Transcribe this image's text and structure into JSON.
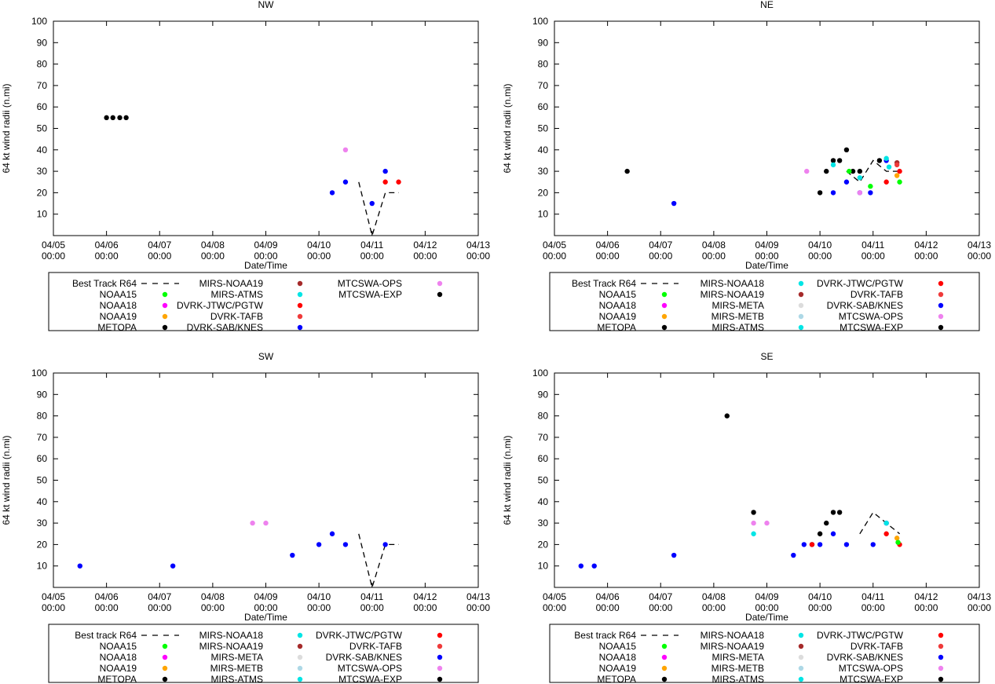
{
  "chart_data": [
    {
      "type": "scatter",
      "title": "NW",
      "xlabel": "Date/Time",
      "ylabel": "64 kt wind radii (n.mi)",
      "xlim": [
        0,
        8
      ],
      "ylim": [
        0,
        100
      ],
      "xticks": [
        {
          "line1": "04/05",
          "line2": "00:00"
        },
        {
          "line1": "04/06",
          "line2": "00:00"
        },
        {
          "line1": "04/07",
          "line2": "00:00"
        },
        {
          "line1": "04/08",
          "line2": "00:00"
        },
        {
          "line1": "04/09",
          "line2": "00:00"
        },
        {
          "line1": "04/10",
          "line2": "00:00"
        },
        {
          "line1": "04/11",
          "line2": "00:00"
        },
        {
          "line1": "04/12",
          "line2": "00:00"
        },
        {
          "line1": "04/13",
          "line2": "00:00"
        }
      ],
      "yticks": [
        "10",
        "20",
        "30",
        "40",
        "50",
        "60",
        "70",
        "80",
        "90",
        "100"
      ],
      "best_track": {
        "x": [
          5.75,
          6.0,
          6.25,
          6.5
        ],
        "y": [
          25,
          0,
          20,
          20
        ]
      },
      "series": [
        {
          "name": "METOPA",
          "color": "#000000",
          "x": [
            1.0,
            1.12,
            1.25,
            1.37
          ],
          "y": [
            55,
            55,
            55,
            55
          ]
        },
        {
          "name": "MTCSWA-OPS",
          "color": "#ee82ee",
          "x": [
            5.5
          ],
          "y": [
            40
          ]
        },
        {
          "name": "DVRK-SAB/KNES",
          "color": "#0000ff",
          "x": [
            5.25,
            5.5,
            6.0,
            6.25
          ],
          "y": [
            20,
            25,
            15,
            30
          ]
        },
        {
          "name": "DVRK-JTWC/PGTW",
          "color": "#ff0000",
          "x": [
            6.25,
            6.5
          ],
          "y": [
            25,
            25
          ]
        }
      ],
      "legend": {
        "columns": [
          [
            {
              "label": "Best Track R64",
              "kind": "line"
            },
            {
              "label": "NOAA15",
              "color": "#00ff00"
            },
            {
              "label": "NOAA18",
              "color": "#ff00ff"
            },
            {
              "label": "NOAA19",
              "color": "#ffa500"
            },
            {
              "label": "METOPA",
              "color": "#000000"
            }
          ],
          [
            {
              "label": "MIRS-NOAA19",
              "color": "#a52a2a"
            },
            {
              "label": "MIRS-ATMS",
              "color": "#00e5e5"
            },
            {
              "label": "DVRK-JTWC/PGTW",
              "color": "#ff0000"
            },
            {
              "label": "DVRK-TAFB",
              "color": "#ef3a3a"
            },
            {
              "label": "DVRK-SAB/KNES",
              "color": "#0000ff"
            }
          ],
          [
            {
              "label": "MTCSWA-OPS",
              "color": "#ee82ee"
            },
            {
              "label": "MTCSWA-EXP",
              "color": "#000000"
            }
          ]
        ]
      }
    },
    {
      "type": "scatter",
      "title": "NE",
      "xlabel": "Date/Time",
      "ylabel": "64 kt wind radii (n.mi)",
      "xlim": [
        0,
        8
      ],
      "ylim": [
        0,
        100
      ],
      "xticks": [
        {
          "line1": "04/05",
          "line2": "00:00"
        },
        {
          "line1": "04/06",
          "line2": "00:00"
        },
        {
          "line1": "04/07",
          "line2": "00:00"
        },
        {
          "line1": "04/08",
          "line2": "00:00"
        },
        {
          "line1": "04/09",
          "line2": "00:00"
        },
        {
          "line1": "04/10",
          "line2": "00:00"
        },
        {
          "line1": "04/11",
          "line2": "00:00"
        },
        {
          "line1": "04/12",
          "line2": "00:00"
        },
        {
          "line1": "04/13",
          "line2": "00:00"
        }
      ],
      "yticks": [
        "10",
        "20",
        "30",
        "40",
        "50",
        "60",
        "70",
        "80",
        "90",
        "100"
      ],
      "best_track": {
        "x": [
          5.5,
          5.75,
          6.0,
          6.25,
          6.5
        ],
        "y": [
          30,
          25,
          35,
          30,
          30
        ]
      },
      "series": [
        {
          "name": "METOPA",
          "color": "#000000",
          "x": [
            1.37,
            5.0,
            5.12,
            5.25,
            5.37,
            5.5,
            5.62,
            5.75,
            6.12
          ],
          "y": [
            30,
            20,
            30,
            35,
            35,
            40,
            30,
            30,
            35
          ]
        },
        {
          "name": "DVRK-SAB/KNES",
          "color": "#0000ff",
          "x": [
            2.25,
            5.25,
            5.5,
            5.75,
            5.95,
            6.25
          ],
          "y": [
            15,
            20,
            25,
            20,
            20,
            35
          ]
        },
        {
          "name": "MTCSWA-OPS",
          "color": "#ee82ee",
          "x": [
            4.75,
            5.75
          ],
          "y": [
            30,
            20
          ]
        },
        {
          "name": "MIRS-ATMS",
          "color": "#00e5e5",
          "x": [
            5.25,
            5.75,
            6.25,
            6.3
          ],
          "y": [
            33,
            27,
            36,
            32
          ]
        },
        {
          "name": "NOAA15",
          "color": "#00ff00",
          "x": [
            5.55,
            5.95,
            6.5
          ],
          "y": [
            30,
            23,
            25
          ]
        },
        {
          "name": "DVRK-JTWC/PGTW",
          "color": "#ff0000",
          "x": [
            6.25,
            6.5
          ],
          "y": [
            25,
            30
          ]
        },
        {
          "name": "MIRS-NOAA19",
          "color": "#a52a2a",
          "x": [
            6.45
          ],
          "y": [
            34
          ]
        },
        {
          "name": "DVRK-TAFB",
          "color": "#ef3a3a",
          "x": [
            6.45
          ],
          "y": [
            33
          ]
        },
        {
          "name": "NOAA19",
          "color": "#ffa500",
          "x": [
            6.45
          ],
          "y": [
            28
          ]
        }
      ],
      "legend": {
        "columns": [
          [
            {
              "label": "Best Track R64",
              "kind": "line"
            },
            {
              "label": "NOAA15",
              "color": "#00ff00"
            },
            {
              "label": "NOAA18",
              "color": "#ff00ff"
            },
            {
              "label": "NOAA19",
              "color": "#ffa500"
            },
            {
              "label": "METOPA",
              "color": "#000000"
            }
          ],
          [
            {
              "label": "MIRS-NOAA18",
              "color": "#00e5e5"
            },
            {
              "label": "MIRS-NOAA19",
              "color": "#a52a2a"
            },
            {
              "label": "MIRS-META",
              "color": "#dcdcdc"
            },
            {
              "label": "MIRS-METB",
              "color": "#add8e6"
            },
            {
              "label": "MIRS-ATMS",
              "color": "#00e5e5"
            }
          ],
          [
            {
              "label": "DVRK-JTWC/PGTW",
              "color": "#ff0000"
            },
            {
              "label": "DVRK-TAFB",
              "color": "#ef3a3a"
            },
            {
              "label": "DVRK-SAB/KNES",
              "color": "#0000ff"
            },
            {
              "label": "MTCSWA-OPS",
              "color": "#ee82ee"
            },
            {
              "label": "MTCSWA-EXP",
              "color": "#000000"
            }
          ]
        ]
      }
    },
    {
      "type": "scatter",
      "title": "SW",
      "xlabel": "Date/Time",
      "ylabel": "64 kt wind radii (n.mi)",
      "xlim": [
        0,
        8
      ],
      "ylim": [
        0,
        100
      ],
      "xticks": [
        {
          "line1": "04/05",
          "line2": "00:00"
        },
        {
          "line1": "04/06",
          "line2": "00:00"
        },
        {
          "line1": "04/07",
          "line2": "00:00"
        },
        {
          "line1": "04/08",
          "line2": "00:00"
        },
        {
          "line1": "04/09",
          "line2": "00:00"
        },
        {
          "line1": "04/10",
          "line2": "00:00"
        },
        {
          "line1": "04/11",
          "line2": "00:00"
        },
        {
          "line1": "04/12",
          "line2": "00:00"
        },
        {
          "line1": "04/13",
          "line2": "00:00"
        }
      ],
      "yticks": [
        "10",
        "20",
        "30",
        "40",
        "50",
        "60",
        "70",
        "80",
        "90",
        "100"
      ],
      "best_track": {
        "x": [
          5.75,
          6.0,
          6.25,
          6.5
        ],
        "y": [
          25,
          0,
          20,
          20
        ]
      },
      "series": [
        {
          "name": "DVRK-SAB/KNES",
          "color": "#0000ff",
          "x": [
            0.5,
            2.25,
            4.5,
            5.0,
            5.25,
            5.5,
            6.25
          ],
          "y": [
            10,
            10,
            15,
            20,
            25,
            20,
            20
          ]
        },
        {
          "name": "MTCSWA-OPS",
          "color": "#ee82ee",
          "x": [
            3.75,
            4.0
          ],
          "y": [
            30,
            30
          ]
        }
      ],
      "legend": {
        "columns": [
          [
            {
              "label": "Best track R64",
              "kind": "line"
            },
            {
              "label": "NOAA15",
              "color": "#00ff00"
            },
            {
              "label": "NOAA18",
              "color": "#ff00ff"
            },
            {
              "label": "NOAA19",
              "color": "#ffa500"
            },
            {
              "label": "METOPA",
              "color": "#000000"
            }
          ],
          [
            {
              "label": "MIRS-NOAA18",
              "color": "#00e5e5"
            },
            {
              "label": "MIRS-NOAA19",
              "color": "#a52a2a"
            },
            {
              "label": "MIRS-META",
              "color": "#dcdcdc"
            },
            {
              "label": "MIRS-METB",
              "color": "#add8e6"
            },
            {
              "label": "MIRS-ATMS",
              "color": "#00e5e5"
            }
          ],
          [
            {
              "label": "DVRK-JTWC/PGTW",
              "color": "#ff0000"
            },
            {
              "label": "DVRK-TAFB",
              "color": "#ef3a3a"
            },
            {
              "label": "DVRK-SAB/KNES",
              "color": "#0000ff"
            },
            {
              "label": "MTCSWA-OPS",
              "color": "#ee82ee"
            },
            {
              "label": "MTCSWA-EXP",
              "color": "#000000"
            }
          ]
        ]
      }
    },
    {
      "type": "scatter",
      "title": "SE",
      "xlabel": "Date/Time",
      "ylabel": "64 kt wind radii (n.mi)",
      "xlim": [
        0,
        8
      ],
      "ylim": [
        0,
        100
      ],
      "xticks": [
        {
          "line1": "04/05",
          "line2": "00:00"
        },
        {
          "line1": "04/06",
          "line2": "00:00"
        },
        {
          "line1": "04/07",
          "line2": "00:00"
        },
        {
          "line1": "04/08",
          "line2": "00:00"
        },
        {
          "line1": "04/09",
          "line2": "00:00"
        },
        {
          "line1": "04/10",
          "line2": "00:00"
        },
        {
          "line1": "04/11",
          "line2": "00:00"
        },
        {
          "line1": "04/12",
          "line2": "00:00"
        },
        {
          "line1": "04/13",
          "line2": "00:00"
        }
      ],
      "yticks": [
        "10",
        "20",
        "30",
        "40",
        "50",
        "60",
        "70",
        "80",
        "90",
        "100"
      ],
      "best_track": {
        "x": [
          5.75,
          6.0,
          6.25,
          6.5
        ],
        "y": [
          25,
          35,
          30,
          25
        ]
      },
      "series": [
        {
          "name": "METOPA",
          "color": "#000000",
          "x": [
            3.25,
            3.75,
            4.85,
            5.0,
            5.12,
            5.25,
            5.37
          ],
          "y": [
            80,
            35,
            20,
            25,
            30,
            35,
            35
          ]
        },
        {
          "name": "DVRK-SAB/KNES",
          "color": "#0000ff",
          "x": [
            0.5,
            0.75,
            2.25,
            4.5,
            4.7,
            5.0,
            5.25,
            5.5,
            6.0,
            6.25
          ],
          "y": [
            10,
            10,
            15,
            15,
            20,
            20,
            25,
            20,
            20,
            30
          ]
        },
        {
          "name": "MTCSWA-OPS",
          "color": "#ee82ee",
          "x": [
            3.75,
            4.0
          ],
          "y": [
            30,
            30
          ]
        },
        {
          "name": "MIRS-ATMS",
          "color": "#00e5e5",
          "x": [
            3.75,
            6.25
          ],
          "y": [
            25,
            30
          ]
        },
        {
          "name": "DVRK-JTWC/PGTW",
          "color": "#ff0000",
          "x": [
            4.85,
            6.25,
            6.5
          ],
          "y": [
            20,
            25,
            20
          ]
        },
        {
          "name": "NOAA19",
          "color": "#ffa500",
          "x": [
            6.45
          ],
          "y": [
            23
          ]
        },
        {
          "name": "NOAA15",
          "color": "#00ff00",
          "x": [
            6.47
          ],
          "y": [
            21
          ]
        }
      ],
      "legend": {
        "columns": [
          [
            {
              "label": "Best track R64",
              "kind": "line"
            },
            {
              "label": "NOAA15",
              "color": "#00ff00"
            },
            {
              "label": "NOAA18",
              "color": "#ff00ff"
            },
            {
              "label": "NOAA19",
              "color": "#ffa500"
            },
            {
              "label": "METOPA",
              "color": "#000000"
            }
          ],
          [
            {
              "label": "MIRS-NOAA18",
              "color": "#00e5e5"
            },
            {
              "label": "MIRS-NOAA19",
              "color": "#a52a2a"
            },
            {
              "label": "MIRS-META",
              "color": "#dcdcdc"
            },
            {
              "label": "MIRS-METB",
              "color": "#add8e6"
            },
            {
              "label": "MIRS-ATMS",
              "color": "#00e5e5"
            }
          ],
          [
            {
              "label": "DVRK-JTWC/PGTW",
              "color": "#ff0000"
            },
            {
              "label": "DVRK-TAFB",
              "color": "#ef3a3a"
            },
            {
              "label": "DVRK-SAB/KNES",
              "color": "#0000ff"
            },
            {
              "label": "MTCSWA-OPS",
              "color": "#ee82ee"
            },
            {
              "label": "MTCSWA-EXP",
              "color": "#000000"
            }
          ]
        ]
      }
    }
  ]
}
